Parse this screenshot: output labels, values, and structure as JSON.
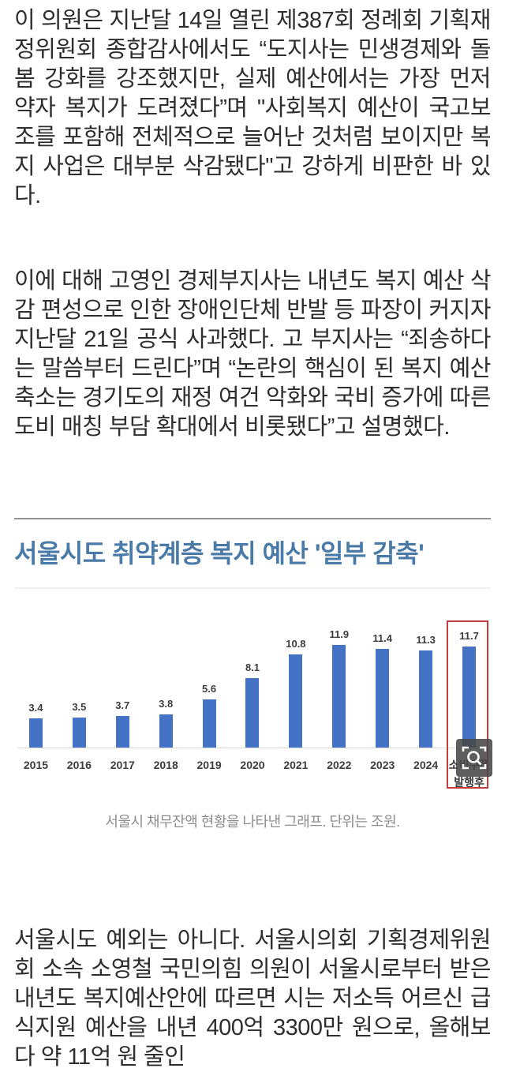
{
  "article": {
    "paragraph1": "이 의원은 지난달 14일 열린 제387회 정례회 기획재정위원회 종합감사에서도 “도지사는 민생경제와 돌봄 강화를 강조했지만, 실제 예산에서는 가장 먼저 약자 복지가 도려졌다”며 \"사회복지 예산이 국고보조를 포함해 전체적으로 늘어난 것처럼 보이지만 복지 사업은 대부분 삭감됐다\"고 강하게 비판한 바 있다.",
    "paragraph2": "이에 대해 고영인 경제부지사는 내년도 복지 예산 삭감 편성으로 인한 장애인단체 반발 등 파장이 커지자 지난달 21일 공식 사과했다. 고 부지사는 “죄송하다는 말씀부터 드린다”며 “논란의 핵심이 된 복지 예산 축소는 경기도의 재정 여건 악화와 국비 증가에 따른 도비 매칭 부담 확대에서 비롯됐다”고 설명했다.",
    "subheading": "서울시도 취약계층 복지 예산 '일부 감축'",
    "caption": "서울시 채무잔액 현황을 나타낸 그래프. 단위는 조원.",
    "paragraph3": "서울시도 예외는 아니다. 서울시의회 기획경제위원회 소속 소영철 국민의힘 의원이 서울시로부터 받은 내년도 복지예산안에 따르면 시는 저소득 어르신 급식지원 예산을 내년 400억 3300만 원으로, 올해보다 약 11억 원 줄인"
  },
  "colors": {
    "body_text": "#2e2e2e",
    "subheading": "#4a7aa8",
    "bar": "#4472c4",
    "highlight": "#c43c3c",
    "caption": "#8d8d8d"
  },
  "icons": {
    "zoom_overlay": "magnifier-in-viewfinder"
  },
  "chart_data": {
    "type": "bar",
    "title": "",
    "xlabel": "",
    "ylabel": "조원",
    "unit": "조원",
    "categories": [
      "2015",
      "2016",
      "2017",
      "2018",
      "2019",
      "2020",
      "2021",
      "2022",
      "2023",
      "2024",
      "소비쿠폰 발행후"
    ],
    "values": [
      3.4,
      3.5,
      3.7,
      3.8,
      5.6,
      8.1,
      10.8,
      11.9,
      11.4,
      11.3,
      11.7
    ],
    "ylim": [
      0,
      13
    ],
    "grid": false,
    "legend": false,
    "data_labels": true,
    "highlighted_category_index": 10
  }
}
